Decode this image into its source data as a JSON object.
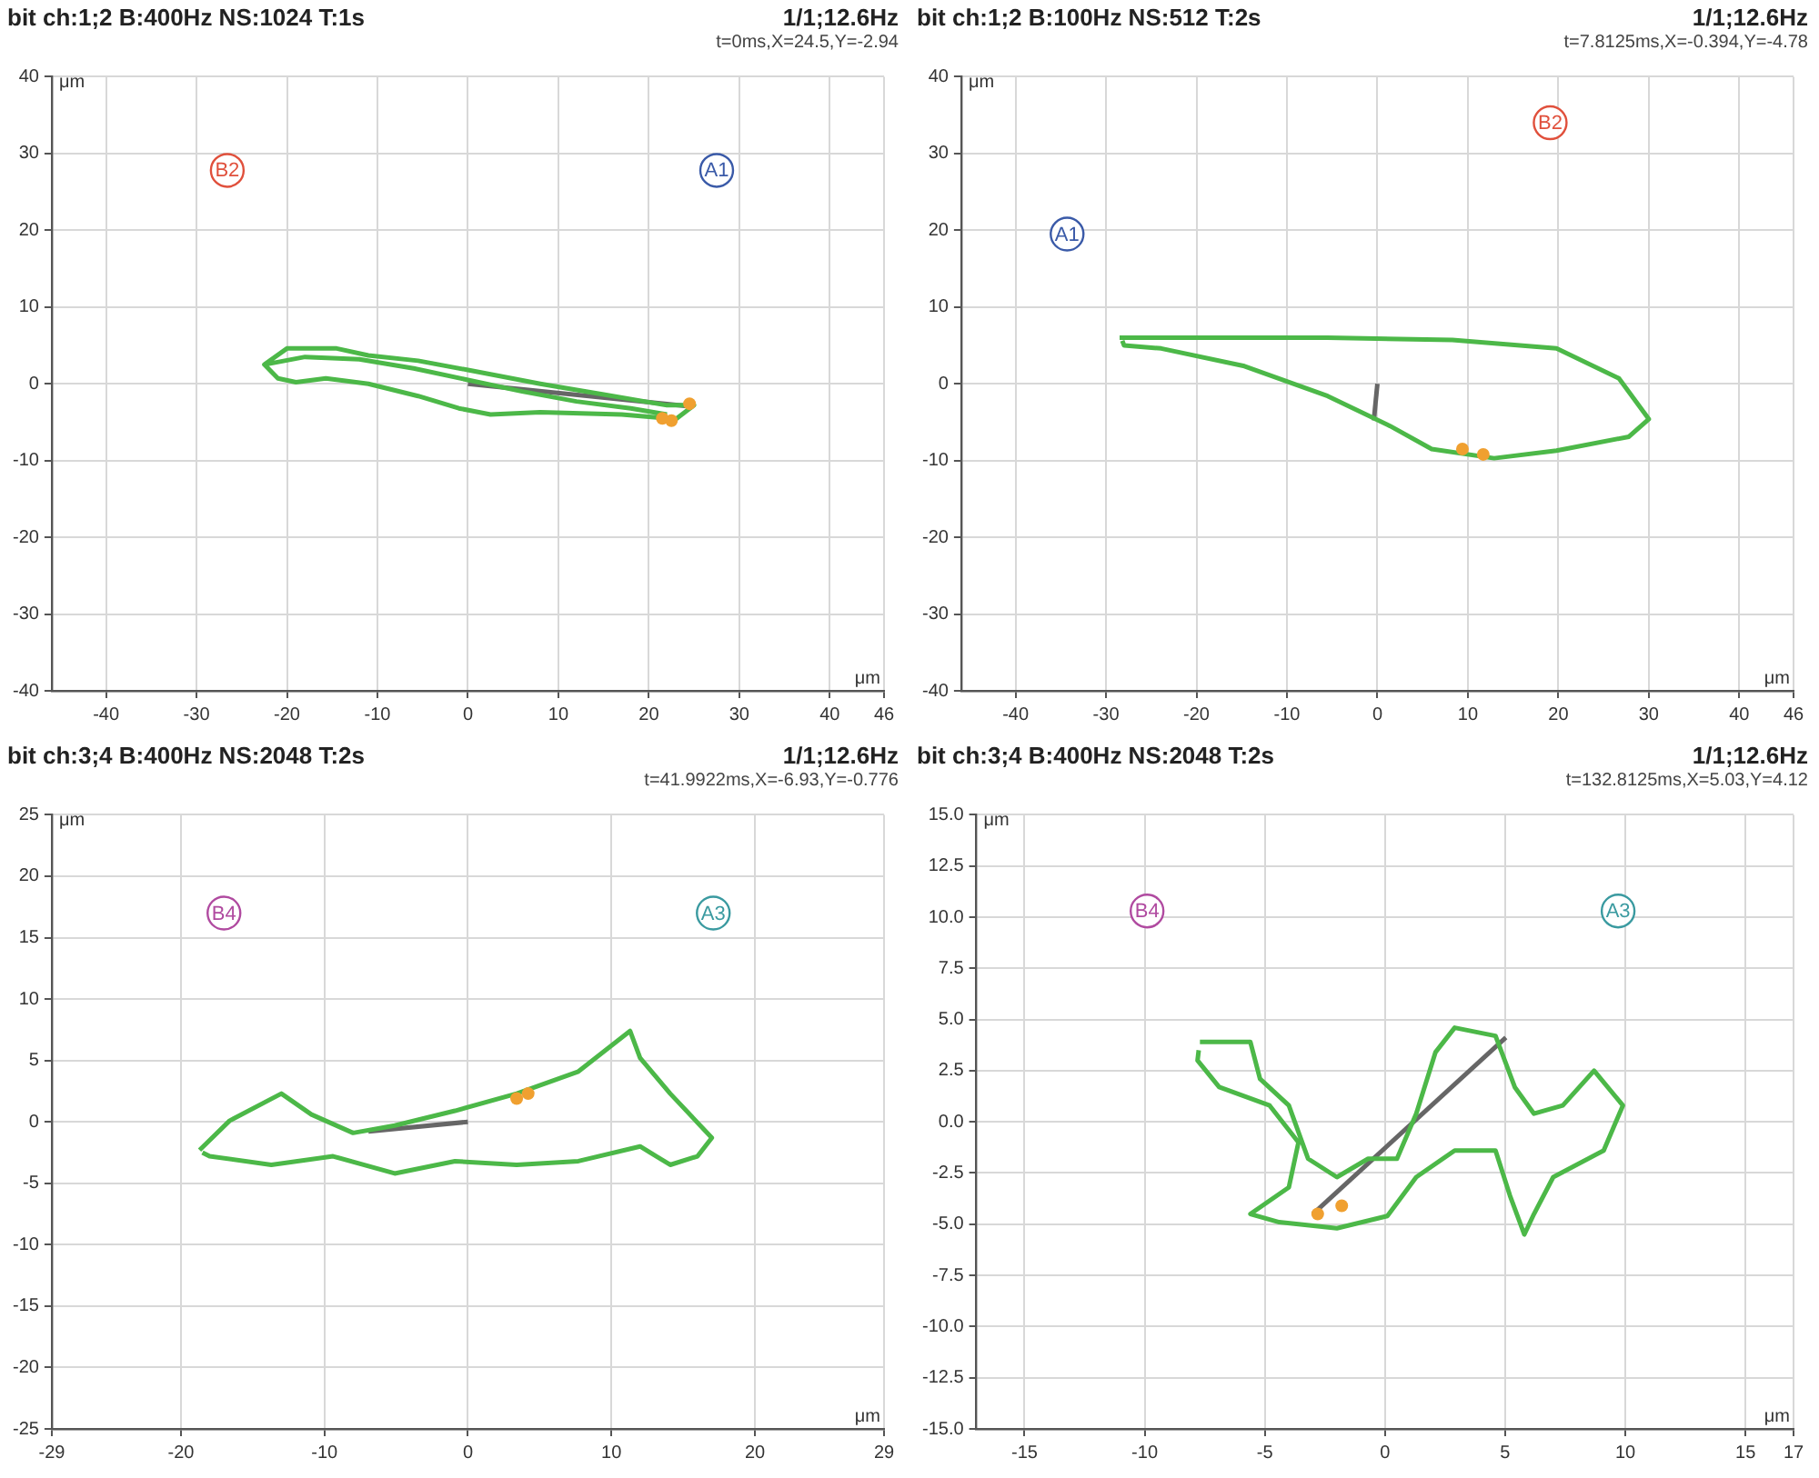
{
  "chart_data": [
    {
      "type": "line",
      "title": "bit ch:1;2 B:400Hz NS:1024 T:1s",
      "xlabel": "μm",
      "ylabel": "μm",
      "annotations": [
        "1/1;12.6Hz",
        "t=0ms,X=24.5,Y=-2.94"
      ],
      "xlim": [
        -46,
        46
      ],
      "ylim": [
        -40,
        40
      ],
      "xticks": [
        -40,
        -30,
        -20,
        -10,
        0,
        10,
        20,
        30,
        40,
        46
      ],
      "yticks": [
        -40,
        -30,
        -20,
        -10,
        0,
        10,
        20,
        30,
        40
      ],
      "grid": true,
      "series": [
        {
          "color": "#4cb848",
          "x": [
            -22.5,
            -20,
            -14.5,
            -11,
            -5.5,
            0,
            8,
            15,
            22,
            25,
            23,
            17,
            8,
            2.5,
            -1,
            -5.5,
            -11,
            -15.7,
            -19,
            -21,
            -22.5,
            -18,
            -12,
            -6,
            0,
            6,
            12,
            18,
            22
          ],
          "values": [
            2.5,
            4.6,
            4.6,
            3.7,
            3,
            1.8,
            0,
            -1.4,
            -2.8,
            -2.8,
            -4.6,
            -4,
            -3.7,
            -4,
            -3.2,
            -1.6,
            0,
            0.7,
            0.2,
            0.7,
            2.5,
            3.5,
            3.2,
            2,
            0.5,
            -1,
            -2.3,
            -3.2,
            -4
          ]
        },
        {
          "color": "#666666",
          "x": [
            0,
            24.5
          ],
          "values": [
            0,
            -2.94
          ]
        },
        {
          "type": "scatter",
          "color": "#f0a030",
          "x": [
            21.5,
            22.5,
            24.5
          ],
          "values": [
            -4.5,
            -4.8,
            -2.6
          ]
        },
        {
          "type": "scatter",
          "name": "B2",
          "color": "#e0503c",
          "x": [
            -26.6
          ],
          "values": [
            27.8
          ]
        },
        {
          "type": "scatter",
          "name": "A1",
          "color": "#3a5aa8",
          "x": [
            27.5
          ],
          "values": [
            27.8
          ]
        }
      ]
    },
    {
      "type": "line",
      "title": "bit ch:1;2 B:100Hz NS:512 T:2s",
      "xlabel": "μm",
      "ylabel": "μm",
      "annotations": [
        "1/1;12.6Hz",
        "t=7.8125ms,X=-0.394,Y=-4.78"
      ],
      "xlim": [
        -46,
        46
      ],
      "ylim": [
        -40,
        40
      ],
      "xticks": [
        -40,
        -30,
        -20,
        -10,
        0,
        10,
        20,
        30,
        40,
        46
      ],
      "yticks": [
        -40,
        -30,
        -20,
        -10,
        0,
        10,
        20,
        30,
        40
      ],
      "grid": true,
      "series": [
        {
          "color": "#4cb848",
          "x": [
            -28.5,
            -19.3,
            -5.5,
            8.3,
            19.8,
            26.7,
            30,
            27.8,
            19.8,
            12.9,
            6,
            1.4,
            -5.5,
            -14.7,
            -23.9,
            -28,
            -28.2
          ],
          "values": [
            6,
            6,
            6,
            5.7,
            4.6,
            0.7,
            -4.6,
            -6.9,
            -8.7,
            -9.7,
            -8.5,
            -5.5,
            -1.6,
            2.3,
            4.6,
            5,
            5.6
          ]
        },
        {
          "color": "#666666",
          "x": [
            0,
            -0.394
          ],
          "values": [
            0,
            -4.78
          ]
        },
        {
          "type": "scatter",
          "color": "#f0a030",
          "x": [
            9.4,
            11.7
          ],
          "values": [
            -8.5,
            -9.2
          ]
        },
        {
          "type": "scatter",
          "name": "A1",
          "color": "#3a5aa8",
          "x": [
            -34.3
          ],
          "values": [
            19.5
          ]
        },
        {
          "type": "scatter",
          "name": "B2",
          "color": "#e0503c",
          "x": [
            19.1
          ],
          "values": [
            34
          ]
        }
      ]
    },
    {
      "type": "line",
      "title": "bit ch:3;4 B:400Hz NS:2048 T:2s",
      "xlabel": "μm",
      "ylabel": "μm",
      "annotations": [
        "1/1;12.6Hz",
        "t=41.9922ms,X=-6.93,Y=-0.776"
      ],
      "xlim": [
        -29,
        29
      ],
      "ylim": [
        -25,
        25
      ],
      "xticks": [
        -29,
        -20,
        -10,
        0,
        10,
        20,
        29
      ],
      "yticks": [
        -25,
        -20,
        -15,
        -10,
        -5,
        0,
        5,
        10,
        15,
        20,
        25
      ],
      "grid": true,
      "series": [
        {
          "color": "#4cb848",
          "x": [
            -18.7,
            -16.6,
            -13,
            -10.9,
            -8,
            -5.1,
            -0.9,
            3.4,
            7.7,
            11.3,
            12,
            14.1,
            17,
            16,
            14.1,
            12,
            7.7,
            3.4,
            -0.9,
            -5.1,
            -9.4,
            -13.7,
            -18,
            -18.5
          ],
          "values": [
            -2.3,
            0.1,
            2.3,
            0.6,
            -0.9,
            -0.3,
            0.9,
            2.3,
            4.1,
            7.4,
            5.2,
            2.3,
            -1.3,
            -2.8,
            -3.5,
            -2,
            -3.2,
            -3.5,
            -3.2,
            -4.2,
            -2.8,
            -3.5,
            -2.8,
            -2.5
          ]
        },
        {
          "color": "#666666",
          "x": [
            -6.93,
            0
          ],
          "values": [
            -0.776,
            0
          ]
        },
        {
          "type": "scatter",
          "color": "#f0a030",
          "x": [
            3.4,
            4.2
          ],
          "values": [
            1.9,
            2.3
          ]
        },
        {
          "type": "scatter",
          "name": "B4",
          "color": "#b04aa0",
          "x": [
            -17
          ],
          "values": [
            17
          ]
        },
        {
          "type": "scatter",
          "name": "A3",
          "color": "#3a9aa0",
          "x": [
            17.1
          ],
          "values": [
            17
          ]
        }
      ]
    },
    {
      "type": "line",
      "title": "bit ch:3;4 B:400Hz NS:2048 T:2s",
      "xlabel": "μm",
      "ylabel": "μm",
      "annotations": [
        "1/1;12.6Hz",
        "t=132.8125ms,X=5.03,Y=4.12"
      ],
      "xlim": [
        -17,
        17
      ],
      "ylim": [
        -15,
        15
      ],
      "xticks": [
        -15,
        -10,
        -5,
        0,
        5,
        10,
        15,
        17
      ],
      "yticks": [
        {
          "value": -15,
          "label": "-15.0"
        },
        {
          "value": -12.5,
          "label": "-12.5"
        },
        {
          "value": -10,
          "label": "-10.0"
        },
        {
          "value": -7.5,
          "label": "-7.5"
        },
        {
          "value": -5,
          "label": "-5.0"
        },
        {
          "value": -2.5,
          "label": "-2.5"
        },
        {
          "value": 0,
          "label": "0.0"
        },
        {
          "value": 2.5,
          "label": "2.5"
        },
        {
          "value": 5,
          "label": "5.0"
        },
        {
          "value": 7.5,
          "label": "7.5"
        },
        {
          "value": 10,
          "label": "10.0"
        },
        {
          "value": 12.5,
          "label": "12.5"
        },
        {
          "value": 15,
          "label": "15.0"
        }
      ],
      "grid": true,
      "series": [
        {
          "color": "#4cb848",
          "x": [
            -7.7,
            -5.6,
            -5.2,
            -4,
            -3.2,
            -2,
            -0.7,
            0.5,
            1.3,
            2.1,
            2.9,
            4.6,
            5.4,
            6.2,
            7.4,
            8.7,
            9.9,
            9.1,
            7,
            6.2,
            5.8,
            5.2,
            4.6,
            2.9,
            1.3,
            0.1,
            -2,
            -4.4,
            -5.6,
            -4,
            -3.6,
            -4.8,
            -6.9,
            -7.8,
            -7.75
          ],
          "values": [
            3.9,
            3.9,
            2.1,
            0.8,
            -1.8,
            -2.7,
            -1.8,
            -1.8,
            0.4,
            3.4,
            4.6,
            4.2,
            1.7,
            0.4,
            0.8,
            2.5,
            0.8,
            -1.4,
            -2.7,
            -4.5,
            -5.5,
            -3.6,
            -1.4,
            -1.4,
            -2.7,
            -4.6,
            -5.2,
            -4.9,
            -4.5,
            -3.2,
            -1,
            0.8,
            1.7,
            3,
            3.5
          ]
        },
        {
          "color": "#666666",
          "x": [
            -3,
            5.03
          ],
          "values": [
            -4.5,
            4.12
          ]
        },
        {
          "type": "scatter",
          "color": "#f0a030",
          "x": [
            -2.8,
            -1.8
          ],
          "values": [
            -4.5,
            -4.1
          ]
        },
        {
          "type": "scatter",
          "name": "B4",
          "color": "#b04aa0",
          "x": [
            -9.9
          ],
          "values": [
            10.3
          ]
        },
        {
          "type": "scatter",
          "name": "A3",
          "color": "#3a9aa0",
          "x": [
            9.7
          ],
          "values": [
            10.3
          ]
        }
      ]
    }
  ]
}
